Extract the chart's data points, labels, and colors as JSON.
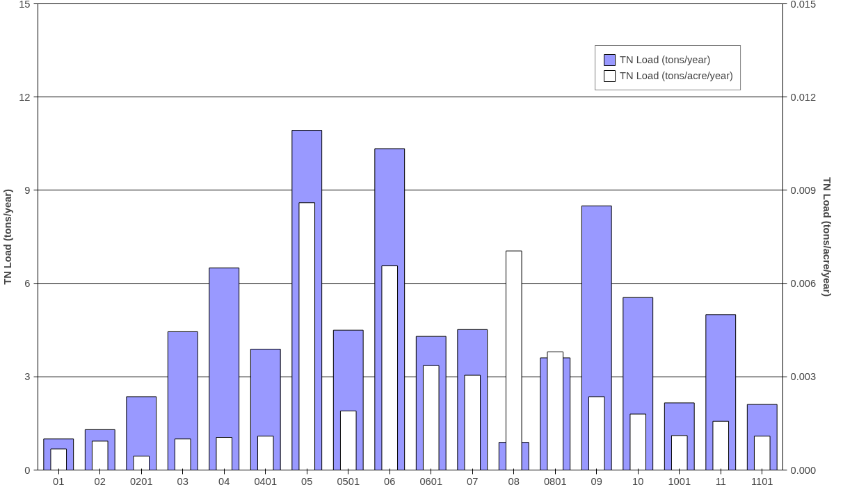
{
  "chart_data": {
    "type": "bar",
    "ylabel": "TN Load (tons/year)",
    "y2label": "TN Load (tons/acre/year)",
    "categories": [
      "01",
      "02",
      "0201",
      "03",
      "04",
      "0401",
      "05",
      "0501",
      "06",
      "0601",
      "07",
      "08",
      "0801",
      "09",
      "10",
      "1001",
      "11",
      "1101"
    ],
    "series": [
      {
        "name": "TN Load (tons/year)",
        "color": "#9999ff",
        "values": [
          1.0,
          1.3,
          2.36,
          4.45,
          6.5,
          3.89,
          10.93,
          4.5,
          10.34,
          4.3,
          4.52,
          0.89,
          3.61,
          8.5,
          5.55,
          2.16,
          5.0,
          2.11
        ]
      },
      {
        "name": "TN Load (tons/acre/year)",
        "color": "#ffffff",
        "axis": "y2",
        "values": [
          0.00068,
          0.00093,
          0.00045,
          0.001,
          0.00105,
          0.00109,
          0.0086,
          0.0019,
          0.00657,
          0.00336,
          0.00305,
          0.00705,
          0.0038,
          0.00236,
          0.0018,
          0.00111,
          0.00157,
          0.00109
        ]
      }
    ],
    "ylim": [
      0,
      15
    ],
    "yticks": [
      0,
      3,
      6,
      9,
      12,
      15
    ],
    "y2lim": [
      0,
      0.015
    ],
    "y2ticks": [
      {
        "value": 0,
        "label": "0.000"
      },
      {
        "value": 0.003,
        "label": "0.003"
      },
      {
        "value": 0.006,
        "label": "0.006"
      },
      {
        "value": 0.009,
        "label": "0.009"
      },
      {
        "value": 0.012,
        "label": "0.012"
      },
      {
        "value": 0.015,
        "label": "0.015"
      }
    ],
    "grid": "y",
    "legend": "top right"
  }
}
